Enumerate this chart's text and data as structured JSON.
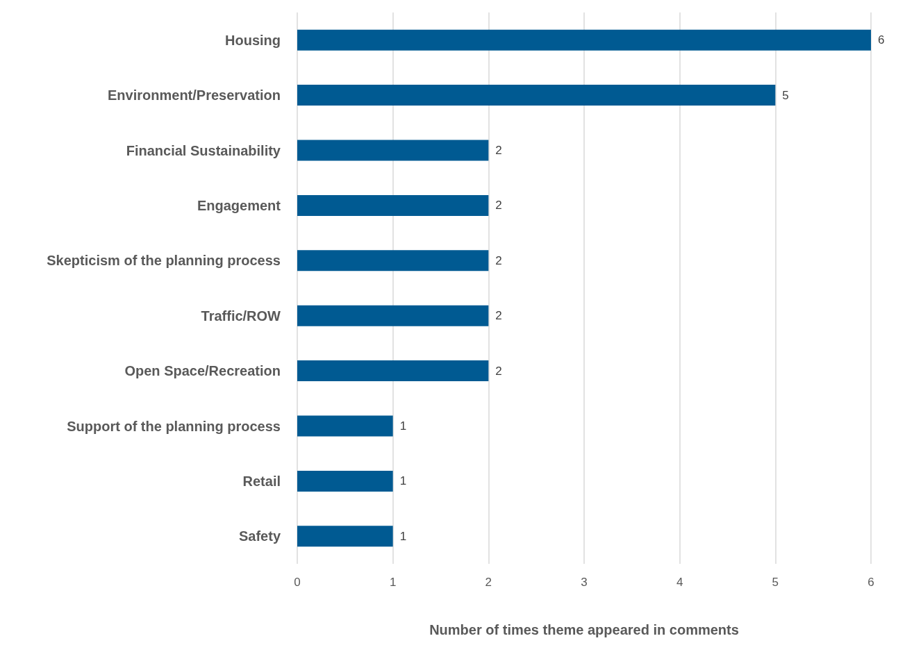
{
  "chart_data": {
    "type": "bar",
    "orientation": "horizontal",
    "xlabel": "Number of times theme appeared in comments",
    "categories": [
      "Housing",
      "Environment/Preservation",
      "Financial Sustainability",
      "Engagement",
      "Skepticism of the planning process",
      "Traffic/ROW",
      "Open Space/Recreation",
      "Support of the planning process",
      "Retail",
      "Safety"
    ],
    "values": [
      6,
      5,
      2,
      2,
      2,
      2,
      2,
      1,
      1,
      1
    ],
    "color": "#005a92",
    "xlim": [
      0,
      6
    ],
    "xticks": [
      0,
      1,
      2,
      3,
      4,
      5,
      6
    ],
    "grid": "x",
    "data_labels": true
  }
}
